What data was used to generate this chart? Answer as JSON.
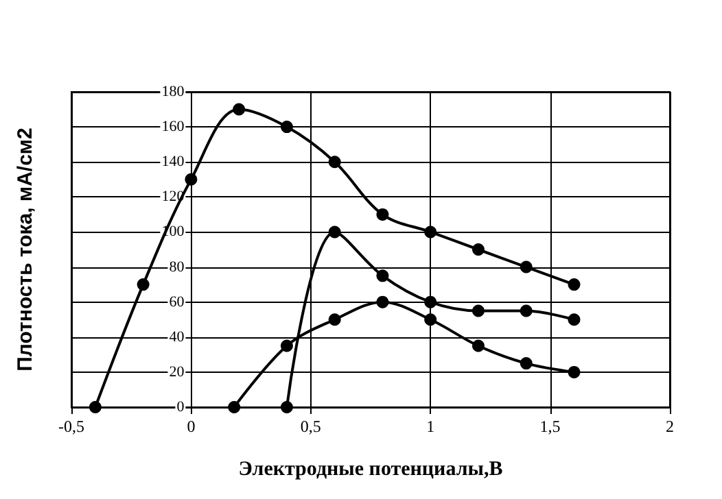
{
  "chart_data": {
    "type": "line",
    "xlabel": "Электродные потенциалы,В",
    "ylabel": "Плотность тока, мА/см2",
    "series": [
      {
        "color": "#000000",
        "x": [
          -0.4,
          -0.2,
          0,
          0.2,
          0.4,
          0.6,
          0.8,
          1.0,
          1.2,
          1.4,
          1.6
        ],
        "values": [
          0,
          70,
          130,
          170,
          160,
          140,
          110,
          100,
          90,
          80,
          70
        ]
      },
      {
        "color": "#000000",
        "x": [
          0.4,
          0.6,
          0.8,
          1.0,
          1.2,
          1.4,
          1.6
        ],
        "values": [
          0,
          100,
          75,
          60,
          55,
          55,
          50
        ]
      },
      {
        "color": "#000000",
        "x": [
          0.18,
          0.4,
          0.6,
          0.8,
          1.0,
          1.2,
          1.4,
          1.6
        ],
        "values": [
          0,
          35,
          50,
          60,
          50,
          35,
          25,
          20
        ]
      }
    ],
    "xlim": [
      -0.5,
      2
    ],
    "xticks": [
      {
        "value": -0.5,
        "label": "-0,5"
      },
      0,
      {
        "value": 0.5,
        "label": "0,5"
      },
      1,
      {
        "value": 1.5,
        "label": "1,5"
      },
      2
    ],
    "ylim": [
      0,
      180
    ],
    "yticks": [
      0,
      20,
      40,
      60,
      80,
      100,
      120,
      140,
      160,
      180
    ],
    "grid": true,
    "marker": "circle",
    "line_style": "solid"
  }
}
